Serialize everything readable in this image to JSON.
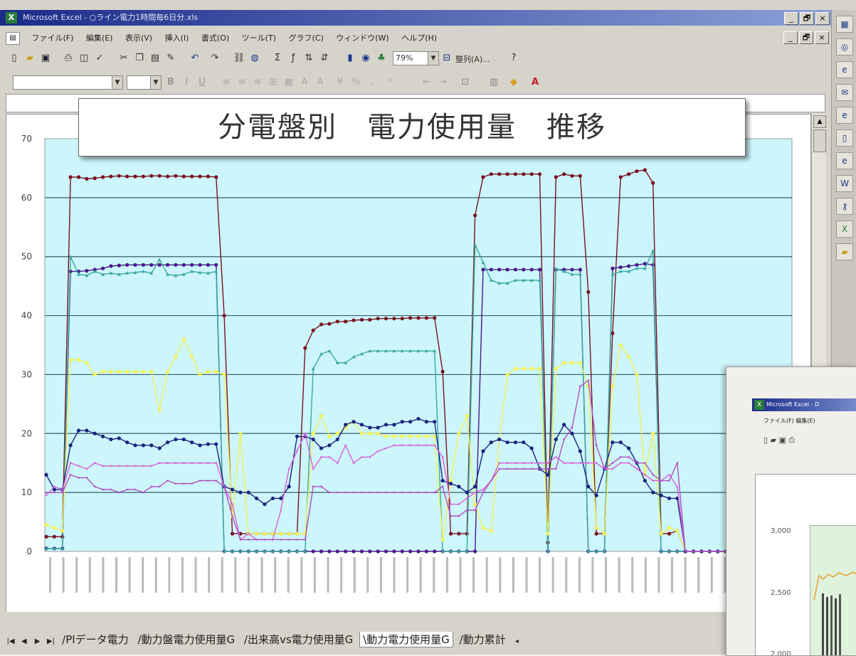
{
  "window": {
    "title": "Microsoft Excel - ○ライン電力1時間毎6日分.xls",
    "app_icon": "excel-icon",
    "buttons": [
      "_",
      "🗗",
      "×"
    ]
  },
  "menubar": {
    "items": [
      "ファイル(F)",
      "編集(E)",
      "表示(V)",
      "挿入(I)",
      "書式(O)",
      "ツール(T)",
      "グラフ(C)",
      "ウィンドウ(W)",
      "ヘルプ(H)"
    ]
  },
  "toolbar": {
    "zoom": "79%",
    "align_label": "整列(A)..."
  },
  "banner": {
    "text": "分電盤別　電力使用量　推移"
  },
  "sheet_tabs": {
    "tabs": [
      "PIデータ電力",
      "動力盤電力使用量G",
      "出来高vs電力使用量G",
      "動力電力使用量G",
      "動力累計"
    ],
    "active_index": 3
  },
  "inset": {
    "title": "Microsoft Excel - D",
    "menu": "ファイル(F)  編集(E)",
    "yticks": [
      "3,000",
      "2,500",
      "2,000"
    ],
    "plot_color": "#dff2dc"
  },
  "chart_data": {
    "type": "line",
    "ylim": [
      0,
      70
    ],
    "yticks": [
      0,
      10,
      20,
      30,
      40,
      50,
      60,
      70
    ],
    "grid": true,
    "plot_background": "#ccf6fb",
    "x_label_count": 57,
    "series": [
      {
        "color": "#7a1020",
        "marker": "circle",
        "values": [
          2.5,
          2.5,
          2.5,
          63.5,
          63.5,
          63.2,
          63.3,
          63.5,
          63.6,
          63.7,
          63.6,
          63.6,
          63.6,
          63.7,
          63.7,
          63.6,
          63.7,
          63.6,
          63.6,
          63.6,
          63.6,
          63.5,
          40,
          3,
          3,
          3,
          3,
          3,
          3,
          3,
          3,
          3,
          34.5,
          37.5,
          38.5,
          38.6,
          39,
          39,
          39.2,
          39.3,
          39.3,
          39.5,
          39.5,
          39.5,
          39.5,
          39.6,
          39.6,
          39.6,
          39.6,
          30.5,
          3,
          3,
          3,
          57,
          63.5,
          64,
          64,
          64,
          64,
          64,
          64,
          64,
          1.5,
          63.5,
          64,
          63.7,
          63.7,
          44,
          3,
          3,
          37,
          63.5,
          64,
          64.5,
          64.7,
          62.5,
          3,
          3,
          3.5,
          0,
          0,
          0,
          0,
          0,
          0,
          0,
          0,
          0,
          0,
          0,
          0,
          0,
          0
        ]
      },
      {
        "color": "#4a1a8a",
        "marker": "circle",
        "values": [
          0.5,
          0.5,
          0.5,
          47.5,
          47.5,
          47.6,
          47.8,
          48,
          48.4,
          48.5,
          48.6,
          48.6,
          48.6,
          48.6,
          48.6,
          48.6,
          48.6,
          48.6,
          48.6,
          48.6,
          48.6,
          48.6,
          0,
          0,
          0,
          0,
          0,
          0,
          0,
          0,
          0,
          0,
          0,
          0,
          0,
          0,
          0,
          0,
          0,
          0,
          0,
          0,
          0,
          0,
          0,
          0,
          0,
          0,
          0,
          0,
          0,
          0,
          0,
          0,
          47.8,
          47.8,
          47.8,
          47.8,
          47.8,
          47.8,
          47.8,
          47.8,
          0,
          47.8,
          47.8,
          47.8,
          47.8,
          0,
          0,
          0,
          48,
          48.2,
          48.4,
          48.6,
          48.8,
          48.6,
          0,
          0,
          0,
          0,
          0,
          0,
          0,
          0,
          0,
          0,
          0,
          0,
          0,
          0,
          0,
          0,
          0
        ]
      },
      {
        "color": "#3aa8a0",
        "marker": "triangle",
        "values": [
          0.5,
          0.5,
          0.5,
          50,
          47,
          46.8,
          47.5,
          47,
          47.2,
          47,
          47.2,
          47.3,
          47.5,
          47.2,
          49.5,
          47,
          46.8,
          47,
          47.5,
          47.3,
          47.2,
          47.5,
          0,
          0,
          0,
          0,
          0,
          0,
          0,
          0,
          0,
          0,
          0,
          31,
          33.5,
          34,
          32,
          32,
          33,
          33.5,
          34,
          34,
          34,
          34,
          34,
          34,
          34,
          34,
          34,
          0,
          0,
          0,
          0,
          52,
          49,
          46,
          45.5,
          45.5,
          46,
          46,
          46,
          46,
          0,
          48,
          47.5,
          47,
          47,
          0,
          0,
          0,
          47,
          47.5,
          47.5,
          48,
          48,
          51,
          0,
          0,
          0,
          0,
          0,
          0,
          0,
          0,
          0,
          0,
          0,
          0,
          0,
          0,
          0,
          0,
          0
        ]
      },
      {
        "color": "#f2f25a",
        "marker": "circle",
        "values": [
          4.5,
          4,
          3.5,
          32.5,
          32.5,
          32,
          30,
          30.5,
          30.5,
          30.5,
          30.5,
          30.5,
          30.5,
          30.5,
          24,
          30.5,
          33,
          36,
          33,
          30,
          30.5,
          30.5,
          30,
          6,
          20,
          3,
          3,
          3,
          3,
          3,
          3,
          3,
          3,
          20,
          23,
          19.5,
          20,
          21,
          22,
          20,
          20,
          20,
          19.5,
          19.5,
          19.5,
          19.5,
          19.5,
          19.5,
          19.5,
          2,
          12,
          20,
          23,
          8,
          4,
          3.5,
          19,
          30,
          31,
          31,
          31,
          31,
          3,
          31,
          32,
          32,
          32,
          28,
          4,
          3,
          28,
          35,
          33,
          30,
          13,
          20,
          3,
          4,
          3.5,
          0,
          0,
          0,
          0,
          0,
          0,
          0,
          0,
          0,
          0,
          0,
          0,
          0,
          0
        ]
      },
      {
        "color": "#1a237e",
        "marker": "circle",
        "values": [
          13,
          10.5,
          10.5,
          18,
          20.5,
          20.5,
          20,
          19.5,
          19,
          19.2,
          18.5,
          18,
          18,
          18,
          17.5,
          18.5,
          19,
          19,
          18.5,
          18,
          18.2,
          18.2,
          11,
          10.5,
          10,
          10,
          9,
          8,
          9,
          9,
          11,
          19.5,
          19.5,
          19,
          17.5,
          18,
          19,
          21.5,
          22,
          21.5,
          21,
          21,
          21.5,
          21.5,
          22,
          22,
          22.5,
          22,
          22,
          12,
          11.5,
          11,
          10,
          11,
          17,
          18.5,
          19,
          18.5,
          18.5,
          18.5,
          17.5,
          14,
          13,
          19,
          21.5,
          20,
          17,
          11,
          9.5,
          14,
          18.5,
          18.5,
          17.5,
          15,
          12,
          10,
          9.5,
          9,
          9,
          0,
          0,
          0,
          0,
          0,
          0,
          0,
          0,
          0,
          0,
          0,
          0,
          0,
          0
        ]
      },
      {
        "color": "#d860d8",
        "marker": "dot",
        "values": [
          9.5,
          11,
          10.5,
          15,
          14.5,
          14,
          15,
          14.5,
          14.5,
          14.5,
          14.5,
          14.5,
          14.5,
          14.5,
          15,
          15,
          15,
          15,
          15,
          15,
          15,
          15,
          11,
          8,
          2,
          3,
          2,
          2,
          2,
          7,
          14,
          17,
          20,
          14,
          16,
          16,
          15,
          18,
          15,
          16,
          16,
          17,
          17.5,
          18,
          18,
          18,
          18,
          18,
          18,
          16,
          8,
          8,
          9,
          10,
          10.5,
          12,
          15,
          15,
          15,
          15,
          15,
          15,
          15,
          16,
          15,
          15,
          15,
          15,
          15,
          14,
          14,
          15,
          15,
          14,
          13,
          12,
          12,
          13,
          11,
          0,
          0,
          0,
          0,
          0,
          0,
          0,
          0,
          0,
          0,
          0,
          0,
          0,
          0
        ]
      },
      {
        "color": "#b050c0",
        "marker": "dot",
        "values": [
          10,
          10,
          10,
          13,
          12.5,
          12.5,
          11,
          10.5,
          10.5,
          10,
          10.5,
          10.5,
          10,
          11,
          11,
          12,
          11.5,
          11.5,
          11.5,
          12,
          12,
          12,
          11,
          6,
          2,
          2,
          2,
          2,
          2,
          2,
          2,
          2,
          2,
          11,
          11,
          10,
          10,
          10,
          10,
          10,
          10,
          10,
          10,
          10,
          10,
          10,
          10,
          10,
          10,
          11,
          6,
          6,
          7,
          7,
          10,
          12,
          14,
          14,
          14,
          14,
          14,
          14,
          14,
          14,
          19,
          21,
          28,
          29,
          18,
          14,
          15,
          16,
          16,
          15,
          15,
          13,
          12,
          12,
          15,
          0,
          0,
          0,
          0,
          0,
          0,
          0,
          0,
          0,
          0,
          0,
          0,
          0,
          0
        ]
      }
    ]
  }
}
